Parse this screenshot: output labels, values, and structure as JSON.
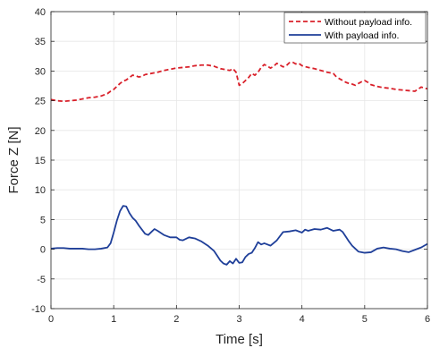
{
  "chart_data": {
    "type": "line",
    "xlabel": "Time [s]",
    "ylabel": "Force Z [N]",
    "xlim": [
      0,
      6
    ],
    "ylim": [
      -10,
      40
    ],
    "xticks": [
      0,
      1,
      2,
      3,
      4,
      5,
      6
    ],
    "yticks": [
      -10,
      -5,
      0,
      5,
      10,
      15,
      20,
      25,
      30,
      35,
      40
    ],
    "grid": true,
    "legend_position": "top-right",
    "series": [
      {
        "name": "Without payload info.",
        "color": "#d9202a",
        "line_style": "dashed",
        "x": [
          0,
          0.1,
          0.2,
          0.3,
          0.4,
          0.5,
          0.6,
          0.7,
          0.8,
          0.85,
          0.9,
          0.95,
          1.0,
          1.05,
          1.1,
          1.15,
          1.2,
          1.25,
          1.3,
          1.35,
          1.4,
          1.45,
          1.5,
          1.55,
          1.6,
          1.65,
          1.7,
          1.8,
          1.9,
          2.0,
          2.1,
          2.2,
          2.3,
          2.4,
          2.5,
          2.6,
          2.7,
          2.75,
          2.8,
          2.85,
          2.9,
          2.95,
          3.0,
          3.05,
          3.1,
          3.15,
          3.2,
          3.25,
          3.3,
          3.35,
          3.4,
          3.45,
          3.5,
          3.55,
          3.6,
          3.65,
          3.7,
          3.75,
          3.8,
          3.85,
          3.9,
          3.95,
          4.0,
          4.1,
          4.2,
          4.3,
          4.4,
          4.5,
          4.55,
          4.6,
          4.65,
          4.7,
          4.75,
          4.8,
          4.85,
          4.9,
          4.95,
          5.0,
          5.05,
          5.1,
          5.2,
          5.3,
          5.4,
          5.5,
          5.6,
          5.7,
          5.8,
          5.9,
          6.0
        ],
        "values": [
          25.2,
          25.0,
          24.9,
          25.0,
          25.1,
          25.3,
          25.5,
          25.6,
          25.8,
          26.0,
          26.2,
          26.6,
          26.9,
          27.4,
          27.9,
          28.3,
          28.5,
          28.9,
          29.3,
          29.2,
          29.0,
          29.1,
          29.4,
          29.5,
          29.6,
          29.7,
          29.8,
          30.1,
          30.3,
          30.5,
          30.6,
          30.7,
          30.9,
          31.0,
          31.0,
          30.8,
          30.4,
          30.3,
          30.2,
          30.1,
          30.4,
          29.8,
          27.6,
          27.9,
          28.4,
          28.9,
          29.6,
          29.3,
          29.8,
          30.6,
          31.1,
          30.8,
          30.5,
          30.8,
          31.3,
          31.0,
          30.7,
          30.9,
          31.4,
          31.5,
          31.2,
          31.3,
          30.9,
          30.6,
          30.4,
          30.1,
          29.8,
          29.6,
          29.0,
          28.7,
          28.4,
          28.1,
          27.9,
          27.8,
          27.6,
          27.9,
          28.2,
          28.4,
          28.1,
          27.7,
          27.4,
          27.2,
          27.1,
          26.9,
          26.8,
          26.7,
          26.6,
          27.3,
          27.0
        ]
      },
      {
        "name": "With payload info.",
        "color": "#1f3f99",
        "line_style": "solid",
        "x": [
          0,
          0.1,
          0.2,
          0.3,
          0.4,
          0.5,
          0.6,
          0.7,
          0.8,
          0.9,
          0.95,
          1.0,
          1.05,
          1.1,
          1.15,
          1.2,
          1.25,
          1.3,
          1.35,
          1.4,
          1.45,
          1.5,
          1.55,
          1.6,
          1.65,
          1.7,
          1.8,
          1.9,
          2.0,
          2.05,
          2.1,
          2.2,
          2.3,
          2.4,
          2.5,
          2.6,
          2.65,
          2.7,
          2.75,
          2.8,
          2.85,
          2.9,
          2.95,
          3.0,
          3.05,
          3.1,
          3.15,
          3.2,
          3.25,
          3.3,
          3.35,
          3.4,
          3.5,
          3.6,
          3.7,
          3.8,
          3.9,
          4.0,
          4.05,
          4.1,
          4.2,
          4.3,
          4.4,
          4.5,
          4.6,
          4.65,
          4.7,
          4.75,
          4.8,
          4.85,
          4.9,
          5.0,
          5.1,
          5.2,
          5.3,
          5.4,
          5.5,
          5.6,
          5.7,
          5.8,
          5.9,
          6.0
        ],
        "values": [
          0.1,
          0.2,
          0.2,
          0.1,
          0.1,
          0.1,
          0.0,
          0.0,
          0.1,
          0.3,
          1.0,
          2.8,
          4.8,
          6.4,
          7.3,
          7.2,
          6.1,
          5.3,
          4.8,
          4.0,
          3.3,
          2.6,
          2.4,
          2.9,
          3.4,
          3.1,
          2.4,
          2.0,
          2.0,
          1.6,
          1.5,
          2.0,
          1.8,
          1.3,
          0.6,
          -0.3,
          -1.1,
          -1.9,
          -2.4,
          -2.6,
          -2.0,
          -2.4,
          -1.6,
          -2.3,
          -2.2,
          -1.3,
          -0.8,
          -0.6,
          0.2,
          1.2,
          0.8,
          1.0,
          0.6,
          1.5,
          2.9,
          3.0,
          3.2,
          2.8,
          3.3,
          3.1,
          3.4,
          3.3,
          3.6,
          3.1,
          3.3,
          2.9,
          2.1,
          1.3,
          0.6,
          0.1,
          -0.4,
          -0.6,
          -0.5,
          0.1,
          0.3,
          0.1,
          0.0,
          -0.3,
          -0.5,
          -0.1,
          0.3,
          0.9
        ]
      }
    ]
  }
}
